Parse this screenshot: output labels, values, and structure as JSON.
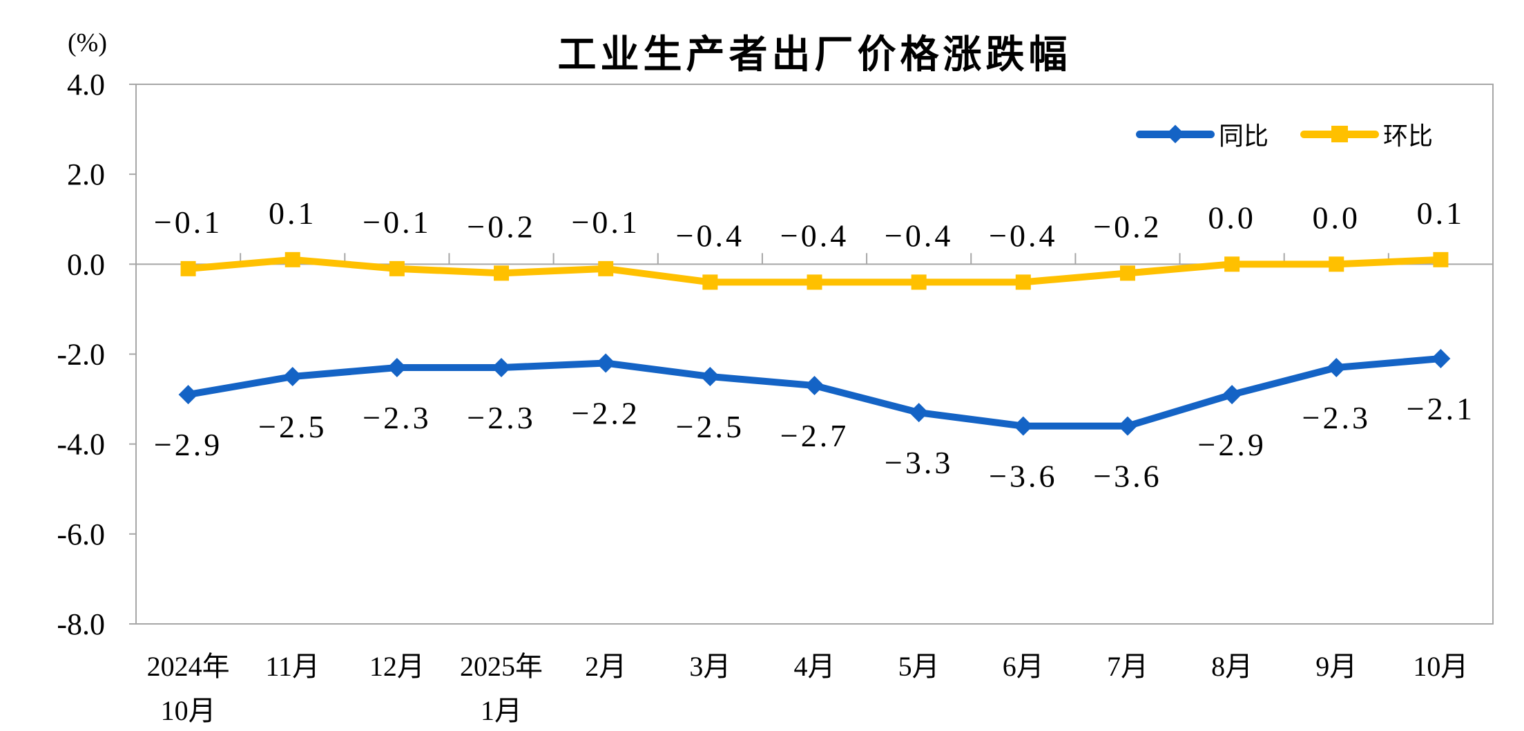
{
  "title": "工业生产者出厂价格涨跌幅",
  "y_axis_unit": "(%)",
  "colors": {
    "yoy_blue": "#1463C5",
    "mom_yellow": "#FFC000",
    "axis_gray": "#A6A6A6",
    "text_black": "#000000"
  },
  "legend": {
    "position": "top-right",
    "items": [
      {
        "label": "同比",
        "marker": "diamond",
        "color": "#1463C5"
      },
      {
        "label": "环比",
        "marker": "square",
        "color": "#FFC000"
      }
    ]
  },
  "chart_data": {
    "type": "line",
    "title": "工业生产者出厂价格涨跌幅",
    "ylabel": "(%)",
    "ylim": [
      -8.0,
      4.0
    ],
    "ytick_step": 2.0,
    "yticks": [
      "4.0",
      "2.0",
      "0.0",
      "-2.0",
      "-4.0",
      "-6.0",
      "-8.0"
    ],
    "grid": "zero-line-only",
    "legend_position": "top-right",
    "categories_lines": [
      [
        "2024年",
        "10月"
      ],
      [
        "11月"
      ],
      [
        "12月"
      ],
      [
        "2025年",
        "1月"
      ],
      [
        "2月"
      ],
      [
        "3月"
      ],
      [
        "4月"
      ],
      [
        "5月"
      ],
      [
        "6月"
      ],
      [
        "7月"
      ],
      [
        "8月"
      ],
      [
        "9月"
      ],
      [
        "10月"
      ]
    ],
    "series": [
      {
        "name": "同比",
        "color": "#1463C5",
        "marker": "diamond",
        "label_position": "below",
        "values": [
          -2.9,
          -2.5,
          -2.3,
          -2.3,
          -2.2,
          -2.5,
          -2.7,
          -3.3,
          -3.6,
          -3.6,
          -2.9,
          -2.3,
          -2.1
        ]
      },
      {
        "name": "环比",
        "color": "#FFC000",
        "marker": "square",
        "label_position": "above",
        "values": [
          -0.1,
          0.1,
          -0.1,
          -0.2,
          -0.1,
          -0.4,
          -0.4,
          -0.4,
          -0.4,
          -0.2,
          0.0,
          0.0,
          0.1
        ]
      }
    ]
  }
}
